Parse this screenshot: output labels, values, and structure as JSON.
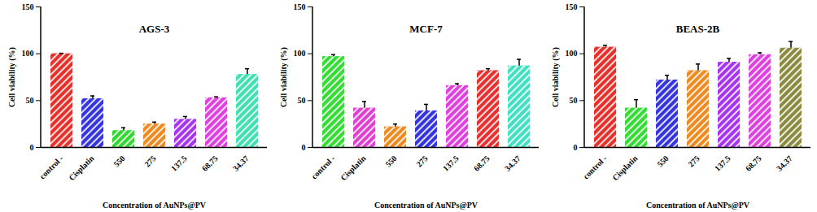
{
  "chart_data": [
    {
      "type": "bar",
      "title": "AGS-3",
      "x_label": "Concentration of AuNPs@PV",
      "y_label": "Cell viability (%)",
      "categories": [
        "control -",
        "Cisplatin",
        "550",
        "275",
        "137.5",
        "68.75",
        "34.37"
      ],
      "values": [
        100,
        52,
        18,
        25,
        30,
        53,
        78
      ],
      "errors": [
        0.5,
        3,
        3,
        2,
        3,
        1,
        6
      ],
      "colors": [
        "#e8302a",
        "#3535e0",
        "#2fd82f",
        "#f08a20",
        "#a535f0",
        "#e040e0",
        "#40e0b0"
      ],
      "ylim": [
        0,
        150
      ],
      "yticks": [
        0,
        50,
        100,
        150
      ]
    },
    {
      "type": "bar",
      "title": "MCF-7",
      "x_label": "Concentration of AuNPs@PV",
      "y_label": "Cell viability (%)",
      "categories": [
        "control -",
        "Cisplatin",
        "550",
        "275",
        "137.5",
        "68.75",
        "34.37"
      ],
      "values": [
        97,
        42,
        22,
        39,
        66,
        82,
        87
      ],
      "errors": [
        2,
        7,
        3,
        7,
        2,
        2,
        7
      ],
      "colors": [
        "#33dd33",
        "#e040d0",
        "#f08a20",
        "#3535e0",
        "#e040e0",
        "#e83030",
        "#40e0c0"
      ],
      "ylim": [
        0,
        150
      ],
      "yticks": [
        0,
        50,
        100,
        150
      ]
    },
    {
      "type": "bar",
      "title": "BEAS-2B",
      "x_label": "Concentration of AuNPs@PV",
      "y_label": "Cell viability (%)",
      "categories": [
        "control -",
        "Cisplatin",
        "550",
        "275",
        "137.5",
        "68.75",
        "34.37"
      ],
      "values": [
        107,
        42,
        72,
        82,
        91,
        99,
        106
      ],
      "errors": [
        2,
        9,
        5,
        7,
        4,
        2,
        7
      ],
      "colors": [
        "#e8302a",
        "#33dd33",
        "#3535e0",
        "#f08a20",
        "#a535f0",
        "#e040e0",
        "#8a8a40"
      ],
      "ylim": [
        0,
        150
      ],
      "yticks": [
        0,
        50,
        100,
        150
      ]
    }
  ]
}
